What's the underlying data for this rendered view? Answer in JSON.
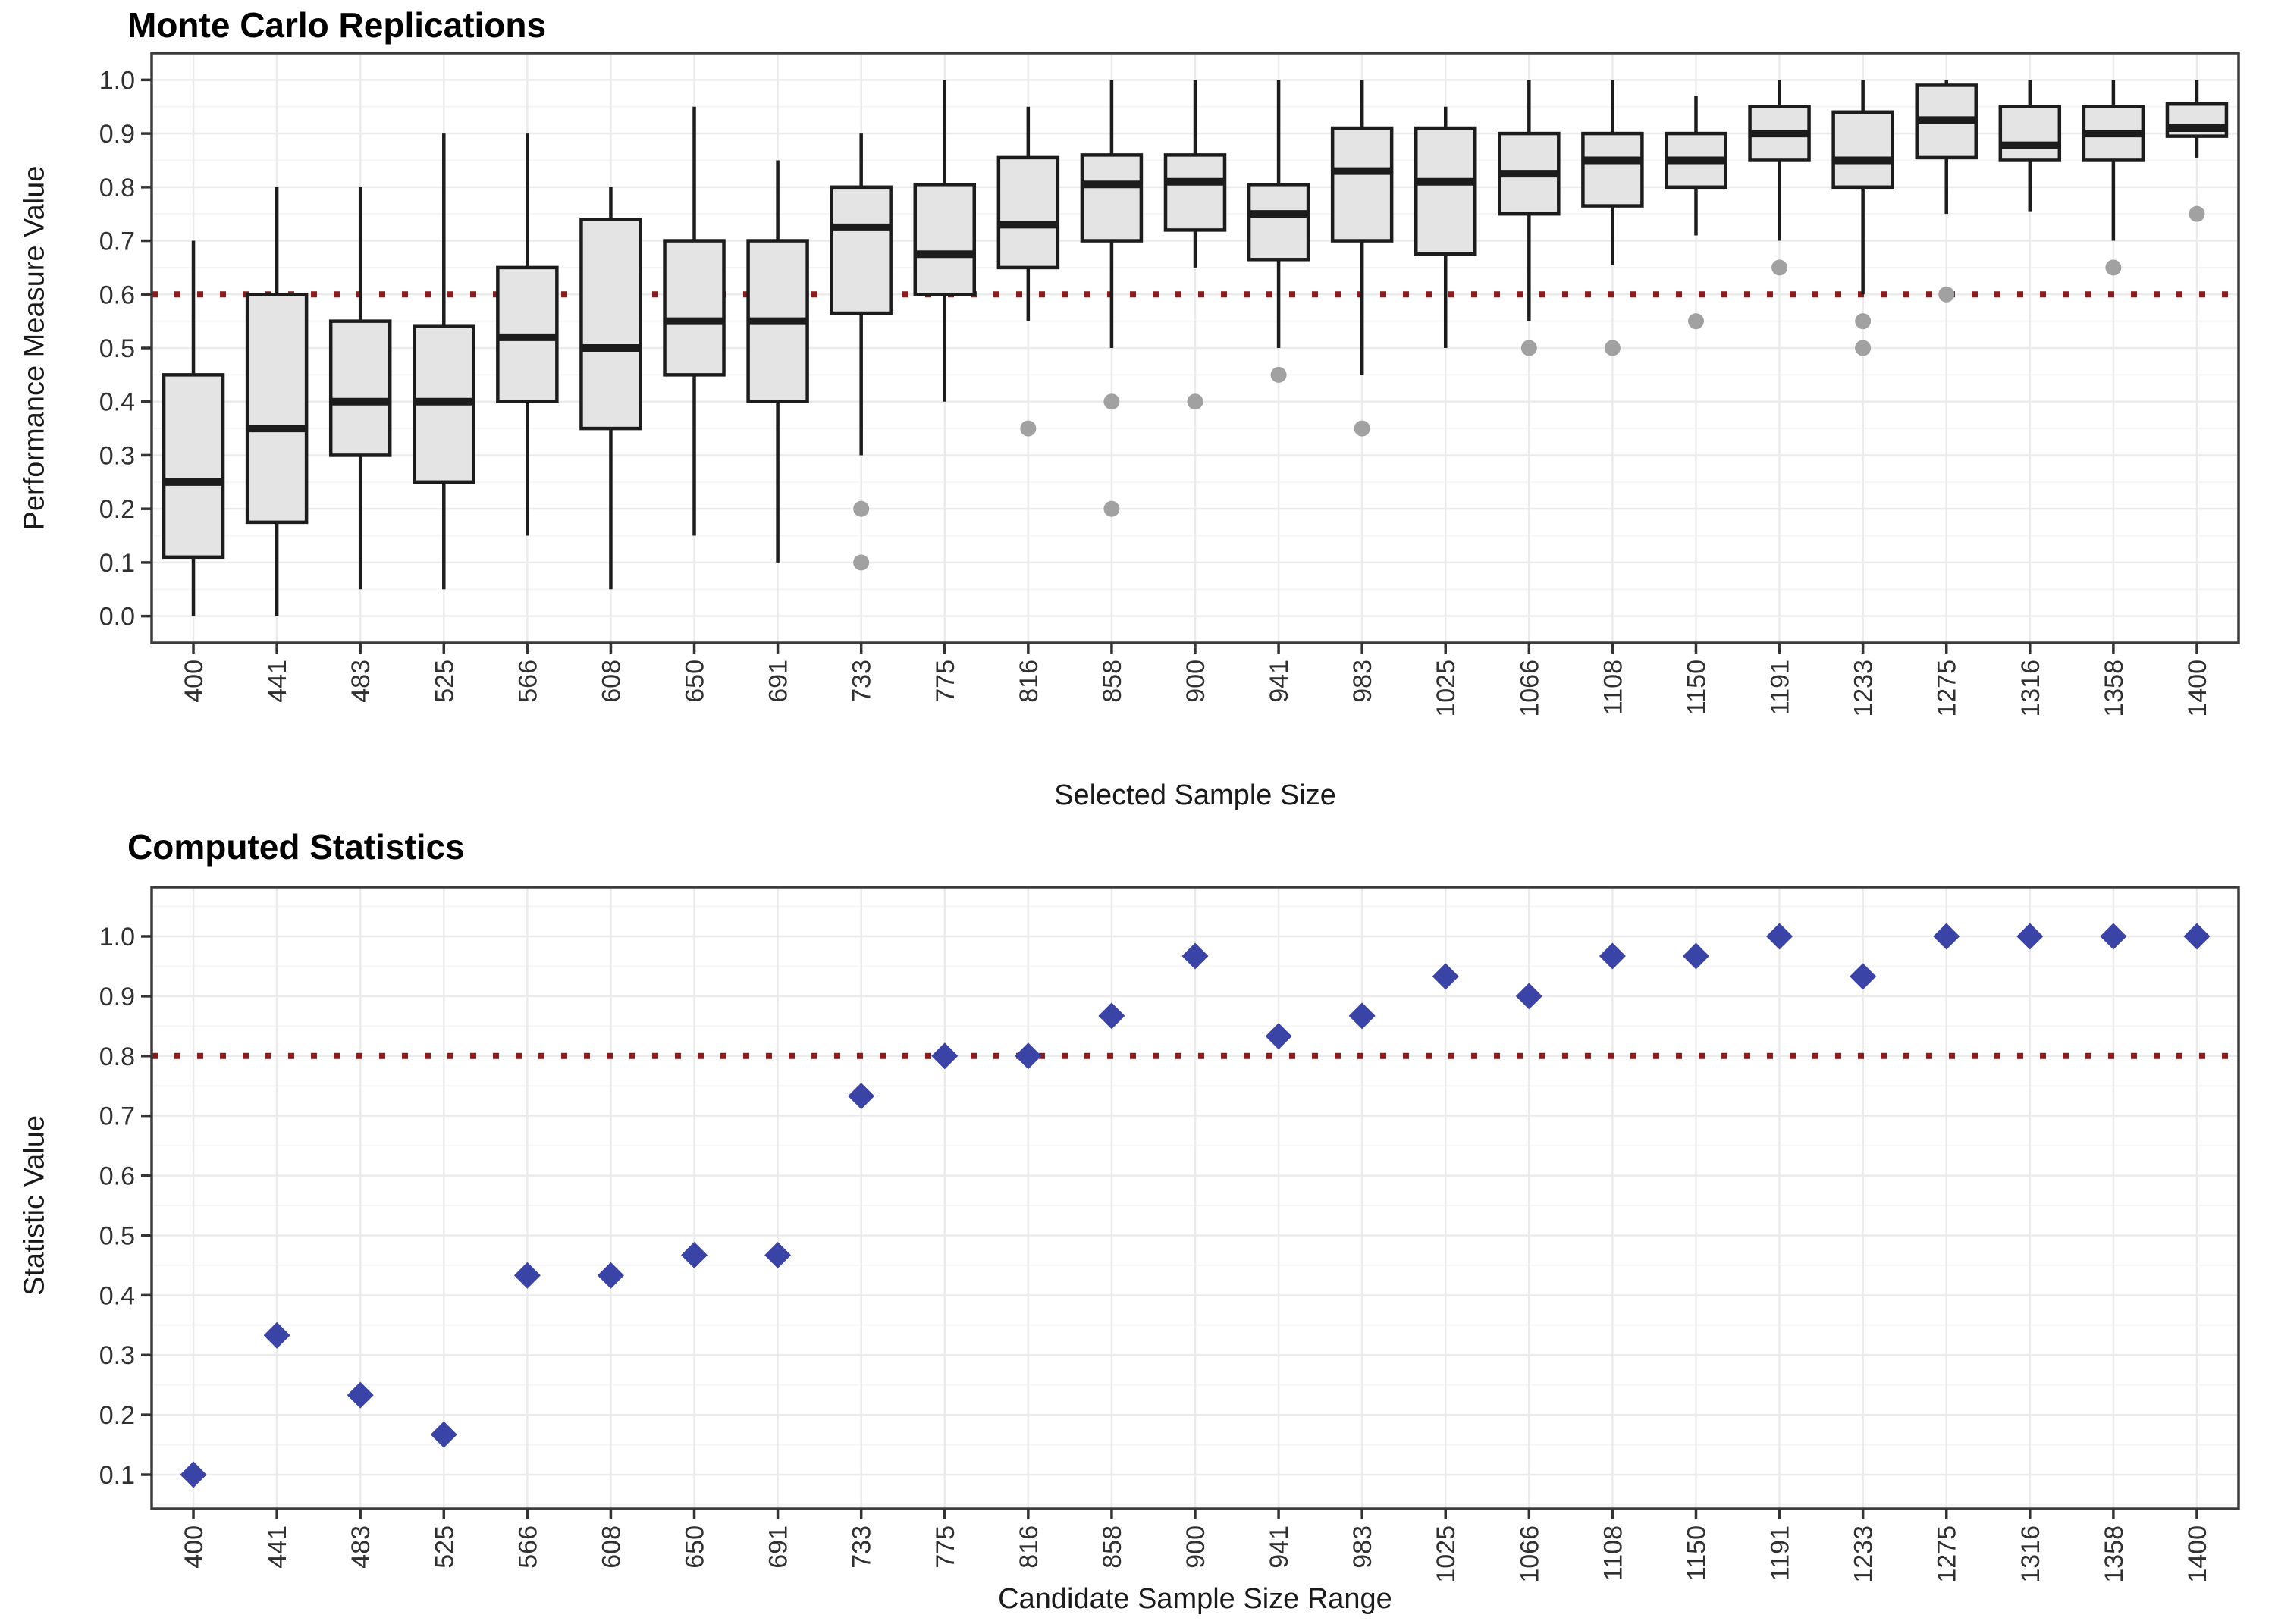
{
  "chart_data": [
    {
      "type": "box",
      "title": "Monte Carlo Replications",
      "xlabel": "Selected Sample Size",
      "ylabel": "Performance Measure Value",
      "categories": [
        400,
        441,
        483,
        525,
        566,
        608,
        650,
        691,
        733,
        775,
        816,
        858,
        900,
        941,
        983,
        1025,
        1066,
        1108,
        1150,
        1191,
        1233,
        1275,
        1316,
        1358,
        1400
      ],
      "yticks": [
        0.0,
        0.1,
        0.2,
        0.3,
        0.4,
        0.5,
        0.6,
        0.7,
        0.8,
        0.9,
        1.0
      ],
      "ylim": [
        0,
        1
      ],
      "grid": "major-and-minor",
      "legend": "none",
      "ref_line": 0.6,
      "boxes": [
        {
          "lo": 0.0,
          "q1": 0.11,
          "med": 0.25,
          "q3": 0.45,
          "hi": 0.7,
          "outliers": []
        },
        {
          "lo": 0.0,
          "q1": 0.175,
          "med": 0.35,
          "q3": 0.6,
          "hi": 0.8,
          "outliers": []
        },
        {
          "lo": 0.05,
          "q1": 0.3,
          "med": 0.4,
          "q3": 0.55,
          "hi": 0.8,
          "outliers": []
        },
        {
          "lo": 0.05,
          "q1": 0.25,
          "med": 0.4,
          "q3": 0.54,
          "hi": 0.9,
          "outliers": []
        },
        {
          "lo": 0.15,
          "q1": 0.4,
          "med": 0.52,
          "q3": 0.65,
          "hi": 0.9,
          "outliers": []
        },
        {
          "lo": 0.05,
          "q1": 0.35,
          "med": 0.5,
          "q3": 0.74,
          "hi": 0.8,
          "outliers": []
        },
        {
          "lo": 0.15,
          "q1": 0.45,
          "med": 0.55,
          "q3": 0.7,
          "hi": 0.95,
          "outliers": []
        },
        {
          "lo": 0.1,
          "q1": 0.4,
          "med": 0.55,
          "q3": 0.7,
          "hi": 0.85,
          "outliers": []
        },
        {
          "lo": 0.3,
          "q1": 0.565,
          "med": 0.725,
          "q3": 0.8,
          "hi": 0.9,
          "outliers": [
            0.2,
            0.1
          ]
        },
        {
          "lo": 0.4,
          "q1": 0.6,
          "med": 0.675,
          "q3": 0.805,
          "hi": 1.0,
          "outliers": []
        },
        {
          "lo": 0.55,
          "q1": 0.65,
          "med": 0.73,
          "q3": 0.855,
          "hi": 0.95,
          "outliers": [
            0.35
          ]
        },
        {
          "lo": 0.5,
          "q1": 0.7,
          "med": 0.805,
          "q3": 0.86,
          "hi": 1.0,
          "outliers": [
            0.4,
            0.2
          ]
        },
        {
          "lo": 0.65,
          "q1": 0.72,
          "med": 0.81,
          "q3": 0.86,
          "hi": 1.0,
          "outliers": [
            0.4
          ]
        },
        {
          "lo": 0.5,
          "q1": 0.665,
          "med": 0.75,
          "q3": 0.805,
          "hi": 1.0,
          "outliers": [
            0.45
          ]
        },
        {
          "lo": 0.45,
          "q1": 0.7,
          "med": 0.83,
          "q3": 0.91,
          "hi": 1.0,
          "outliers": [
            0.35
          ]
        },
        {
          "lo": 0.5,
          "q1": 0.675,
          "med": 0.81,
          "q3": 0.91,
          "hi": 0.95,
          "outliers": []
        },
        {
          "lo": 0.55,
          "q1": 0.75,
          "med": 0.825,
          "q3": 0.9,
          "hi": 1.0,
          "outliers": [
            0.5
          ]
        },
        {
          "lo": 0.655,
          "q1": 0.765,
          "med": 0.85,
          "q3": 0.9,
          "hi": 1.0,
          "outliers": [
            0.5
          ]
        },
        {
          "lo": 0.71,
          "q1": 0.8,
          "med": 0.85,
          "q3": 0.9,
          "hi": 0.97,
          "outliers": [
            0.55
          ]
        },
        {
          "lo": 0.7,
          "q1": 0.85,
          "med": 0.9,
          "q3": 0.95,
          "hi": 1.0,
          "outliers": [
            0.65
          ]
        },
        {
          "lo": 0.6,
          "q1": 0.8,
          "med": 0.85,
          "q3": 0.94,
          "hi": 1.0,
          "outliers": [
            0.55,
            0.5
          ]
        },
        {
          "lo": 0.75,
          "q1": 0.855,
          "med": 0.925,
          "q3": 0.99,
          "hi": 1.0,
          "outliers": [
            0.6
          ]
        },
        {
          "lo": 0.755,
          "q1": 0.85,
          "med": 0.878,
          "q3": 0.95,
          "hi": 1.0,
          "outliers": []
        },
        {
          "lo": 0.7,
          "q1": 0.85,
          "med": 0.9,
          "q3": 0.95,
          "hi": 1.0,
          "outliers": [
            0.65
          ]
        },
        {
          "lo": 0.855,
          "q1": 0.895,
          "med": 0.91,
          "q3": 0.955,
          "hi": 1.0,
          "outliers": [
            0.75
          ]
        }
      ]
    },
    {
      "type": "scatter",
      "title": "Computed Statistics",
      "xlabel": "Candidate Sample Size Range",
      "ylabel": "Statistic Value",
      "categories": [
        400,
        441,
        483,
        525,
        566,
        608,
        650,
        691,
        733,
        775,
        816,
        858,
        900,
        941,
        983,
        1025,
        1066,
        1108,
        1150,
        1191,
        1233,
        1275,
        1316,
        1358,
        1400
      ],
      "values": [
        0.1,
        0.333,
        0.233,
        0.167,
        0.433,
        0.433,
        0.467,
        0.467,
        0.733,
        0.8,
        0.8,
        0.867,
        0.967,
        0.833,
        0.867,
        0.933,
        0.9,
        0.967,
        0.967,
        1.0,
        0.933,
        1.0,
        1.0,
        1.0,
        1.0
      ],
      "yticks": [
        0.1,
        0.2,
        0.3,
        0.4,
        0.5,
        0.6,
        0.7,
        0.8,
        0.9,
        1.0
      ],
      "ylim": [
        0.1,
        1.0
      ],
      "grid": "major-and-minor",
      "legend": "none",
      "ref_line": 0.8,
      "marker": "diamond"
    }
  ],
  "colors": {
    "box_fill": "#E4E4E4",
    "box_stroke": "#1C1C1C",
    "outlier": "#A1A1A1",
    "ref_line": "#8B1A1A",
    "point": "#3A43A6",
    "grid_major": "#EBEBEB",
    "grid_minor": "#F5F5F5",
    "panel_border": "#3C3C3C",
    "axis_tick": "#333333",
    "tick_text": "#303030",
    "title_text": "#000000",
    "panel_bg": "#FFFFFF"
  }
}
